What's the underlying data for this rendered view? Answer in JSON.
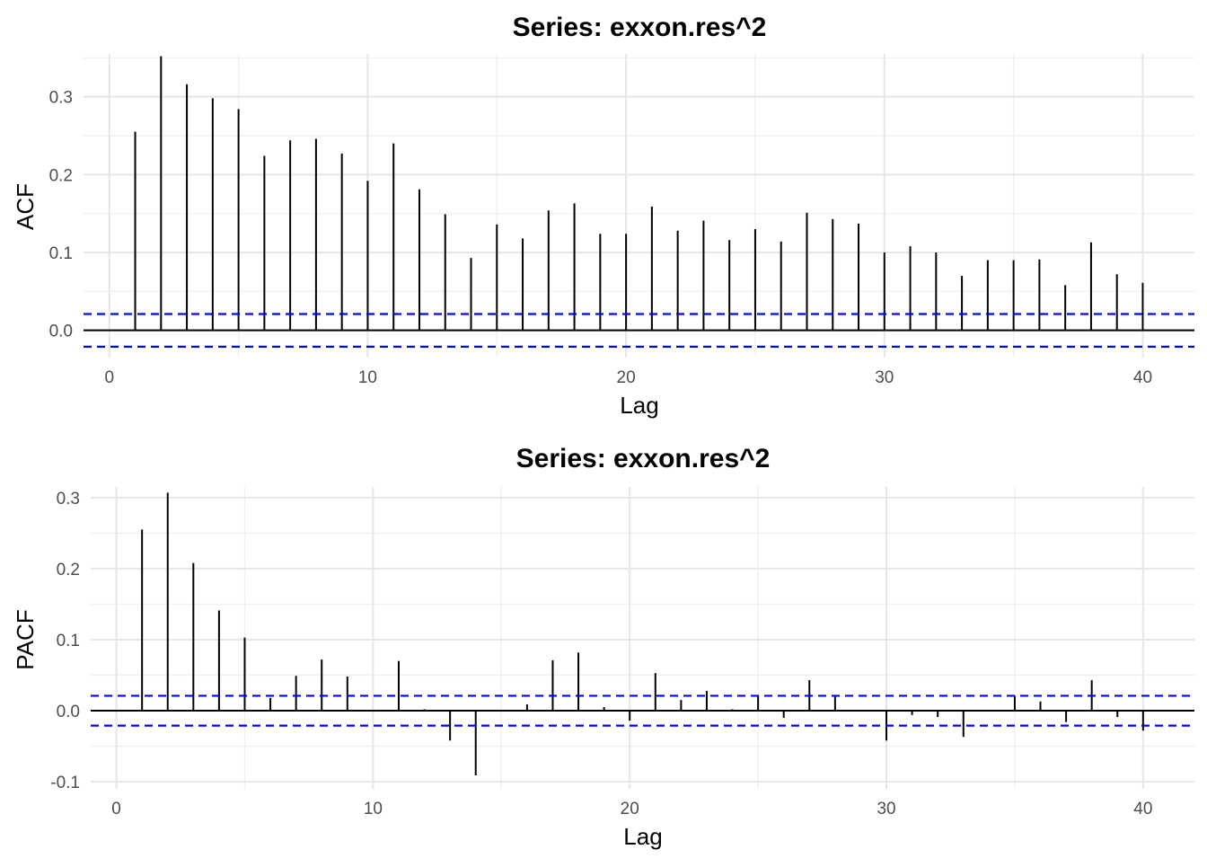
{
  "chart_data": [
    {
      "type": "bar",
      "title": "Series: exxon.res^2",
      "xlabel": "Lag",
      "ylabel": "ACF",
      "xlim": [
        -1,
        42
      ],
      "ylim": [
        -0.035,
        0.355
      ],
      "xticks": [
        0,
        10,
        20,
        30,
        40
      ],
      "xtick_labels": [
        "0",
        "10",
        "20",
        "30",
        "40"
      ],
      "yticks": [
        0.0,
        0.1,
        0.2,
        0.3
      ],
      "ytick_labels": [
        "0.0",
        "0.1",
        "0.2",
        "0.3"
      ],
      "grid": true,
      "ci": 0.021,
      "ci_color": "#0000ff",
      "x": [
        1,
        2,
        3,
        4,
        5,
        6,
        7,
        8,
        9,
        10,
        11,
        12,
        13,
        14,
        15,
        16,
        17,
        18,
        19,
        20,
        21,
        22,
        23,
        24,
        25,
        26,
        27,
        28,
        29,
        30,
        31,
        32,
        33,
        34,
        35,
        36,
        37,
        38,
        39,
        40
      ],
      "values": [
        0.255,
        0.352,
        0.316,
        0.298,
        0.284,
        0.224,
        0.244,
        0.246,
        0.227,
        0.192,
        0.24,
        0.181,
        0.149,
        0.093,
        0.136,
        0.118,
        0.154,
        0.163,
        0.124,
        0.124,
        0.159,
        0.128,
        0.141,
        0.116,
        0.13,
        0.114,
        0.151,
        0.143,
        0.137,
        0.1,
        0.108,
        0.1,
        0.07,
        0.09,
        0.09,
        0.091,
        0.058,
        0.113,
        0.072,
        0.061
      ]
    },
    {
      "type": "bar",
      "title": "Series: exxon.res^2",
      "xlabel": "Lag",
      "ylabel": "PACF",
      "xlim": [
        -1,
        42
      ],
      "ylim": [
        -0.11,
        0.315
      ],
      "xticks": [
        0,
        10,
        20,
        30,
        40
      ],
      "xtick_labels": [
        "0",
        "10",
        "20",
        "30",
        "40"
      ],
      "yticks": [
        -0.1,
        0.0,
        0.1,
        0.2,
        0.3
      ],
      "ytick_labels": [
        "-0.1",
        "0.0",
        "0.1",
        "0.2",
        "0.3"
      ],
      "grid": true,
      "ci": 0.021,
      "ci_color": "#0000ff",
      "x": [
        1,
        2,
        3,
        4,
        5,
        6,
        7,
        8,
        9,
        10,
        11,
        12,
        13,
        14,
        15,
        16,
        17,
        18,
        19,
        20,
        21,
        22,
        23,
        24,
        25,
        26,
        27,
        28,
        29,
        30,
        31,
        32,
        33,
        34,
        35,
        36,
        37,
        38,
        39,
        40
      ],
      "values": [
        0.255,
        0.307,
        0.208,
        0.141,
        0.103,
        0.018,
        0.049,
        0.072,
        0.048,
        0.0,
        0.07,
        0.002,
        -0.042,
        -0.091,
        0.0,
        0.009,
        0.071,
        0.082,
        0.005,
        -0.014,
        0.053,
        0.015,
        0.028,
        0.002,
        0.021,
        -0.01,
        0.043,
        0.021,
        0.0,
        -0.042,
        -0.006,
        -0.009,
        -0.037,
        0.0,
        0.021,
        0.013,
        -0.016,
        0.043,
        -0.009,
        -0.028
      ]
    }
  ]
}
